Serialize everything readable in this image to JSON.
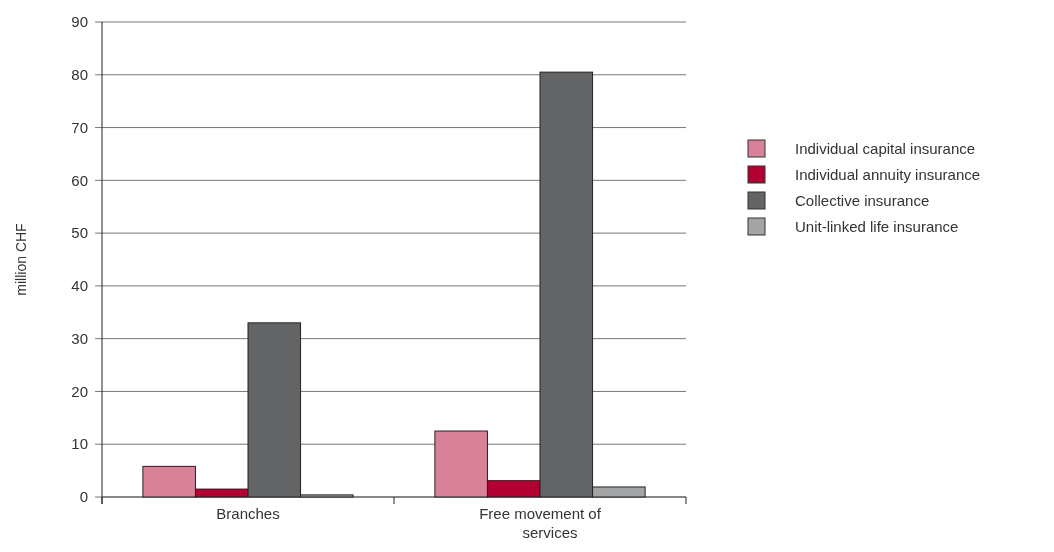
{
  "chart_data": {
    "type": "bar",
    "ylabel": "million CHF",
    "categories": [
      "Branches",
      "Free movement of services"
    ],
    "series": [
      {
        "name": "Individual capital insurance",
        "color": "#d98199",
        "values": [
          5.8,
          12.5
        ]
      },
      {
        "name": "Individual annuity insurance",
        "color": "#b20033",
        "values": [
          1.5,
          3.1
        ]
      },
      {
        "name": "Collective insurance",
        "color": "#636466",
        "values": [
          33,
          80.5
        ]
      },
      {
        "name": "Unit-linked life insurance",
        "color": "#a3a4a6",
        "values": [
          0.4,
          1.9
        ]
      }
    ],
    "ylim": [
      0,
      90
    ],
    "yticks": [
      0,
      10,
      20,
      30,
      40,
      50,
      60,
      70,
      80,
      90
    ],
    "grid": "y",
    "legend": "right"
  }
}
